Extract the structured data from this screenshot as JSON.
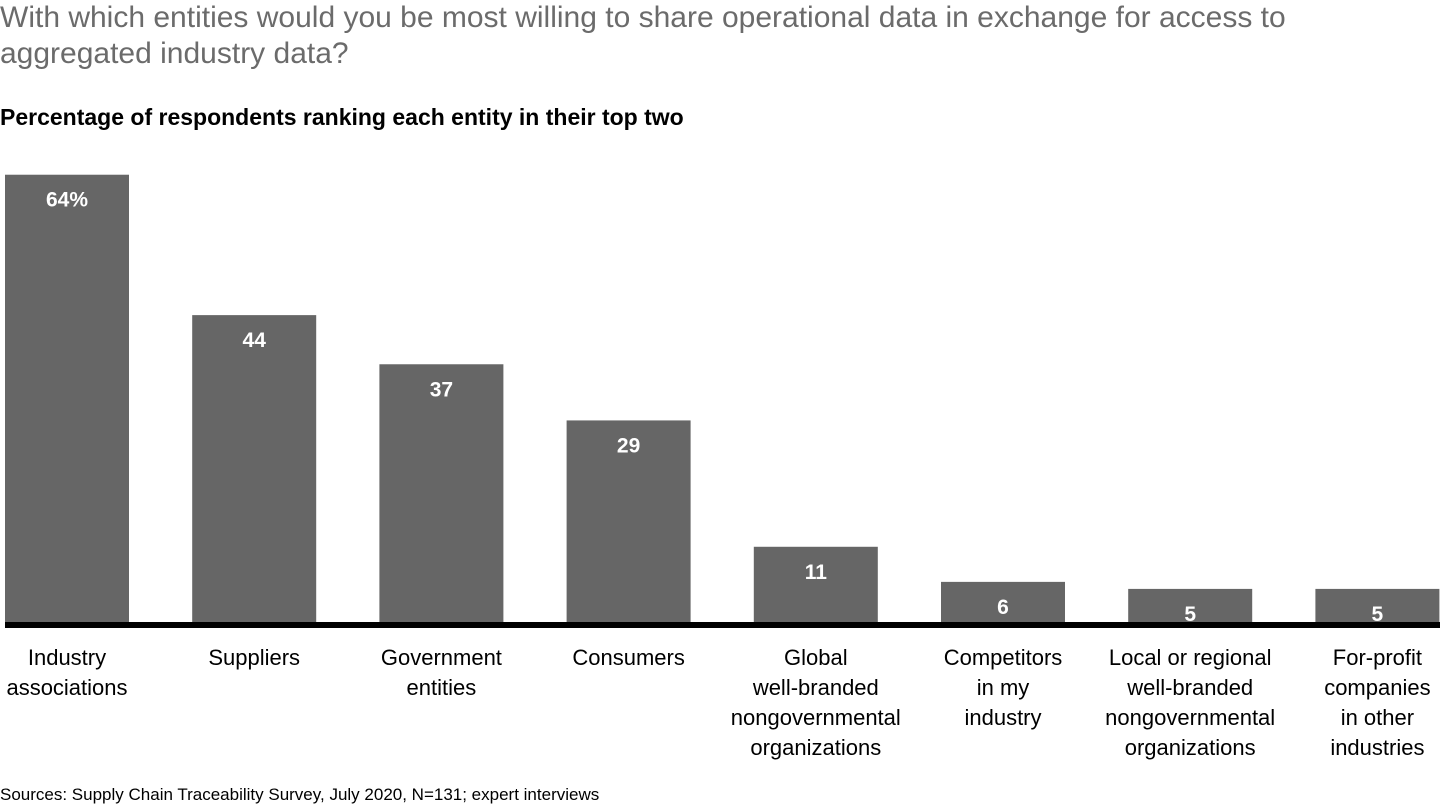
{
  "header": {
    "question": "With which entities would you be most willing to share operational data in exchange for access to aggregated industry data?",
    "subtitle": "Percentage of respondents ranking each entity in their top two"
  },
  "footer": {
    "source": "Sources: Supply Chain Traceability Survey, July 2020, N=131; expert interviews"
  },
  "chart_data": {
    "type": "bar",
    "title": "With which entities would you be most willing to share operational data in exchange for access to aggregated industry data?",
    "subtitle": "Percentage of respondents ranking each entity in their top two",
    "categories": [
      "Industry\nassociations",
      "Suppliers",
      "Government\nentities",
      "Consumers",
      "Global\nwell-branded\nnongovernmental\norganizations",
      "Competitors\nin my\nindustry",
      "Local or regional\nwell-branded\nnongovernmental\norganizations",
      "For-profit\ncompanies\nin other\nindustries"
    ],
    "values": [
      64,
      44,
      37,
      29,
      11,
      6,
      5,
      5
    ],
    "data_labels": [
      "64%",
      "44",
      "37",
      "29",
      "11",
      "6",
      "5",
      "5"
    ],
    "xlabel": "",
    "ylabel": "",
    "ylim": [
      0,
      64
    ],
    "grid": false,
    "legend": "none",
    "bar_color": "#666666",
    "baseline_color": "#000000",
    "label_color": "#ffffff"
  }
}
